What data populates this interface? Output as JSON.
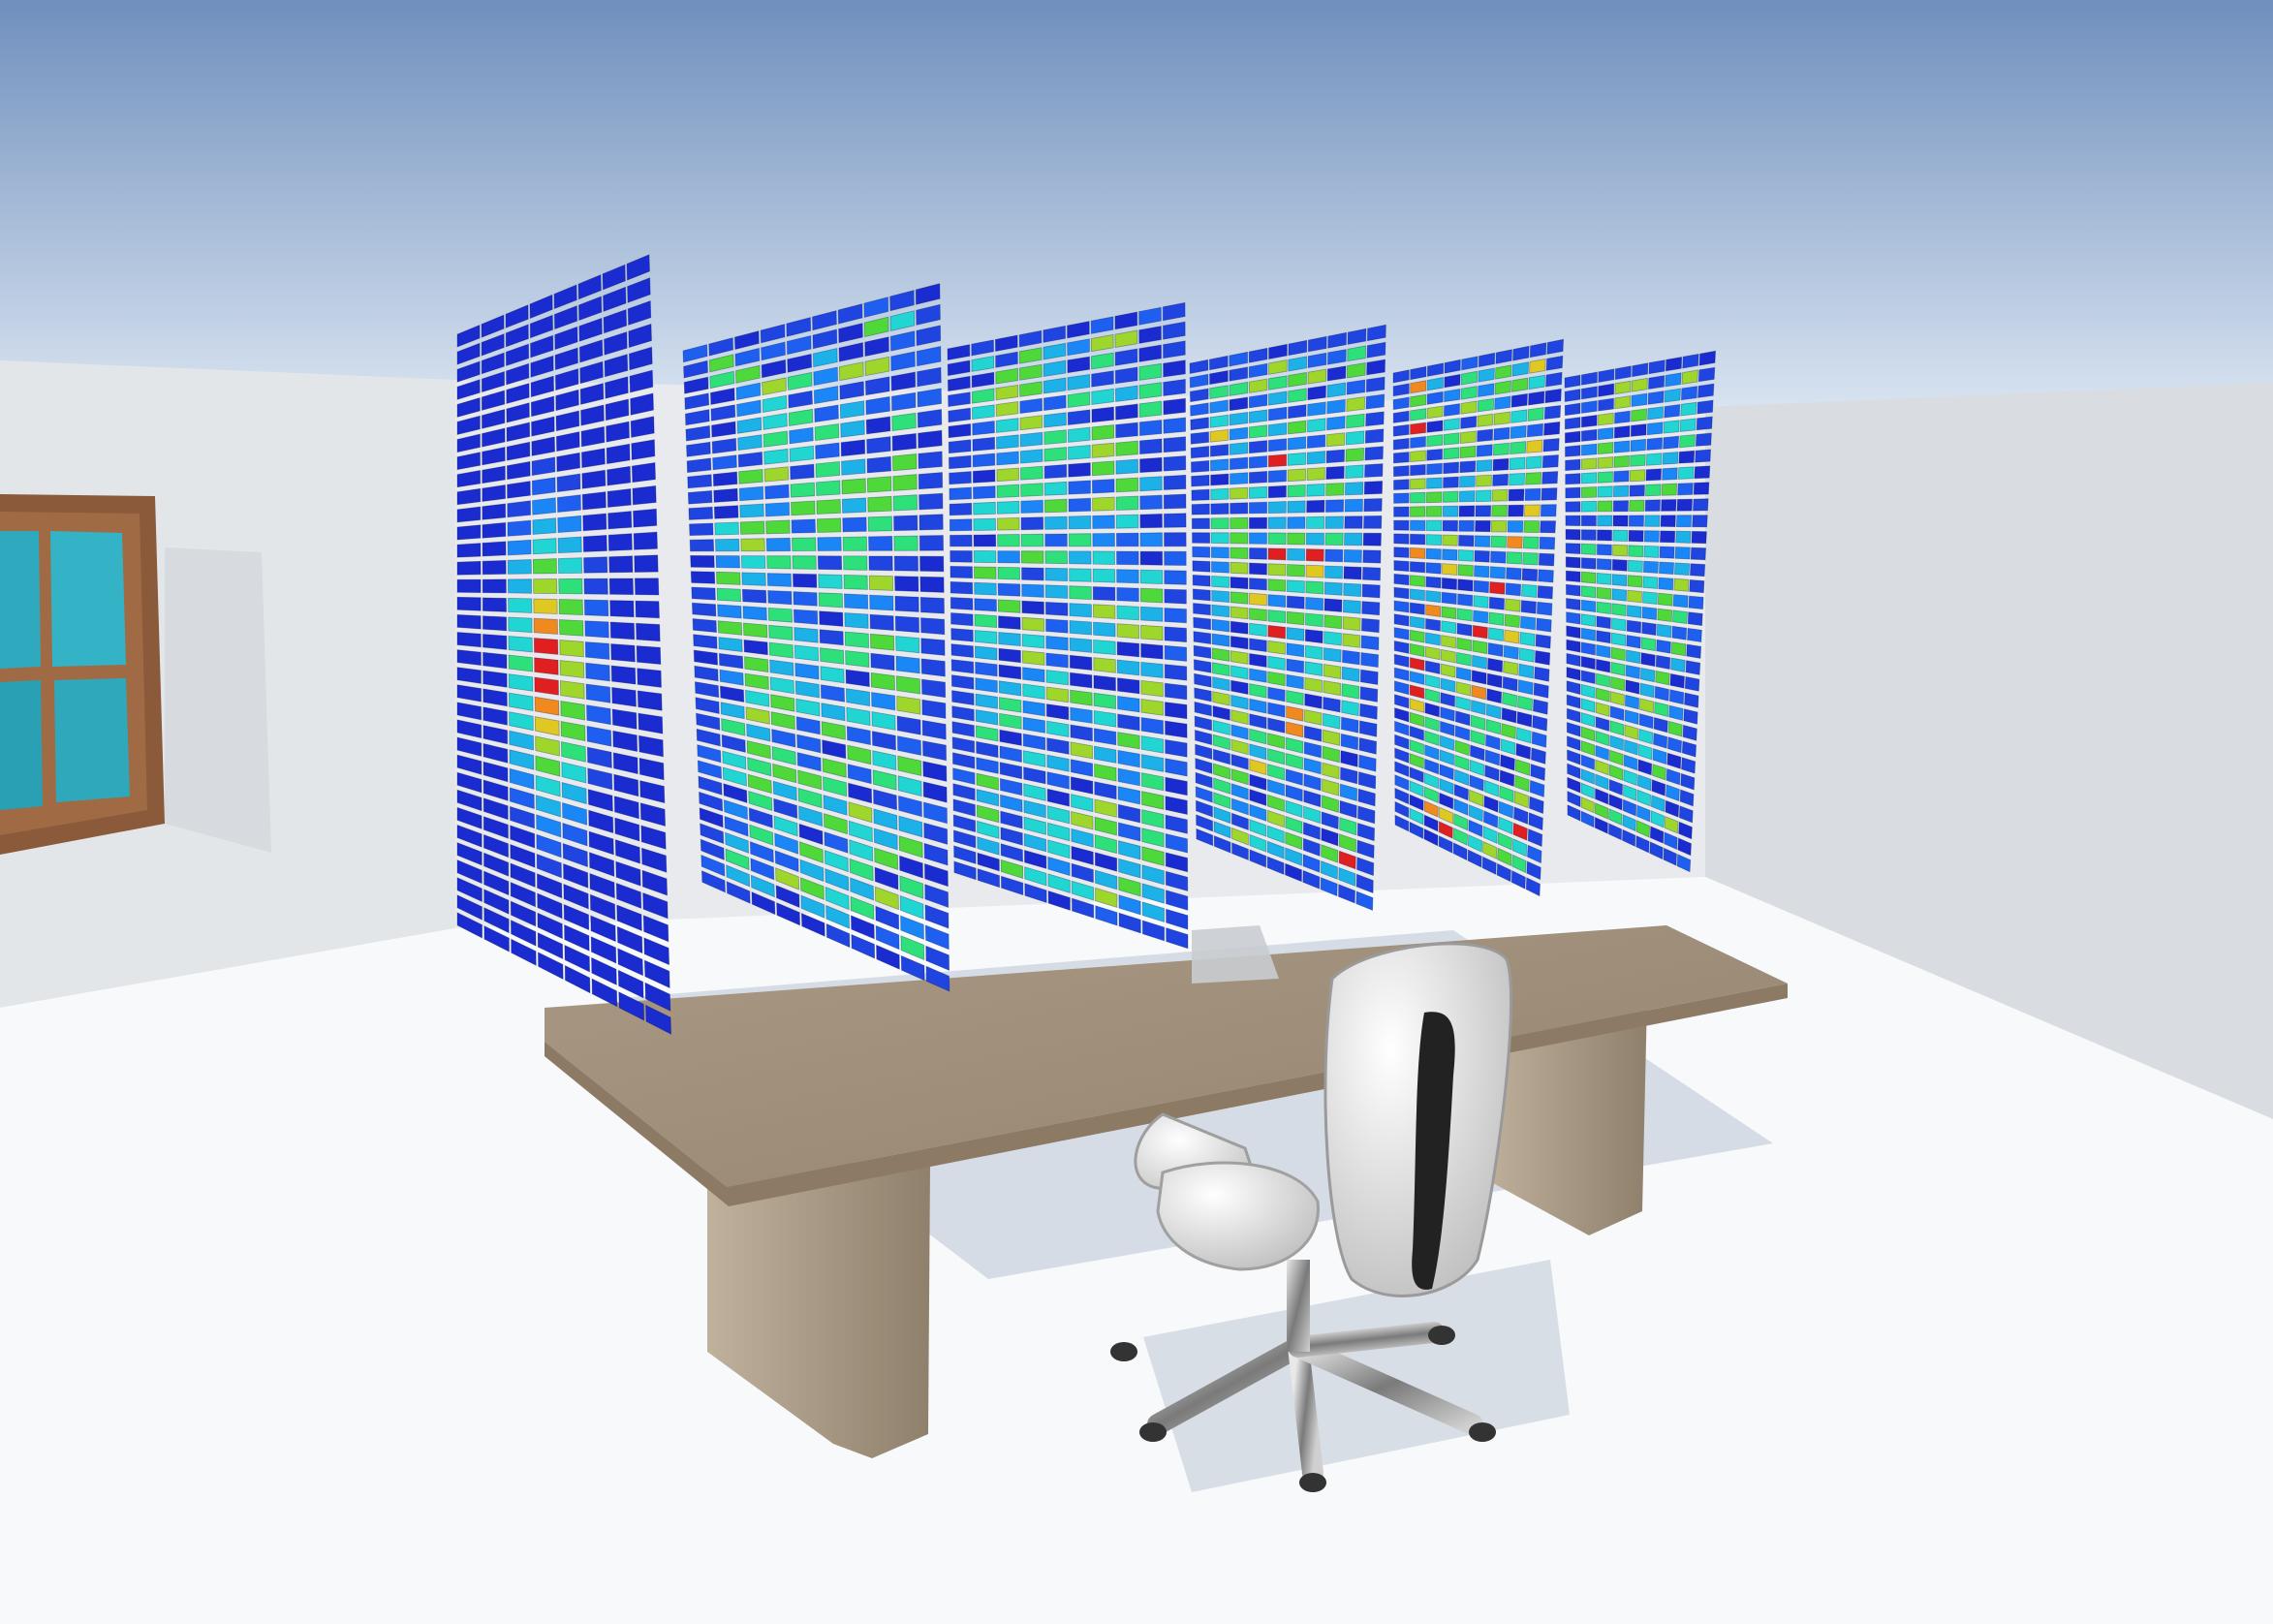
{
  "scene": {
    "colors": {
      "sky_top": "#6f8fbd",
      "sky_bottom": "#d8e3f0",
      "wall": "#e3e6e9",
      "wall_shade": "#cfd4d9",
      "floor": "#f7f9fb",
      "shadow": "#bcc6d3",
      "window_frame": "#8a5a3a",
      "window_glass": "#2fa9bd",
      "desk_top": "#a0907b",
      "desk_edge": "#8c7a65",
      "desk_leg": "#b3a48f",
      "chair_shell": "#dcdcdc",
      "chair_dark": "#222222",
      "chrome": "#9a9a9a",
      "heat_low": "#1e3fd6",
      "heat_mid": "#2ee07a",
      "heat_high": "#e02020"
    },
    "panels": [
      {
        "cols": 8,
        "rows": 34,
        "pattern": "gradient-blob"
      },
      {
        "cols": 10,
        "rows": 34,
        "pattern": "noise"
      },
      {
        "cols": 10,
        "rows": 34,
        "pattern": "noise"
      },
      {
        "cols": 10,
        "rows": 34,
        "pattern": "noise-hot"
      },
      {
        "cols": 10,
        "rows": 34,
        "pattern": "noise-hot"
      },
      {
        "cols": 9,
        "rows": 32,
        "pattern": "noise"
      }
    ]
  }
}
